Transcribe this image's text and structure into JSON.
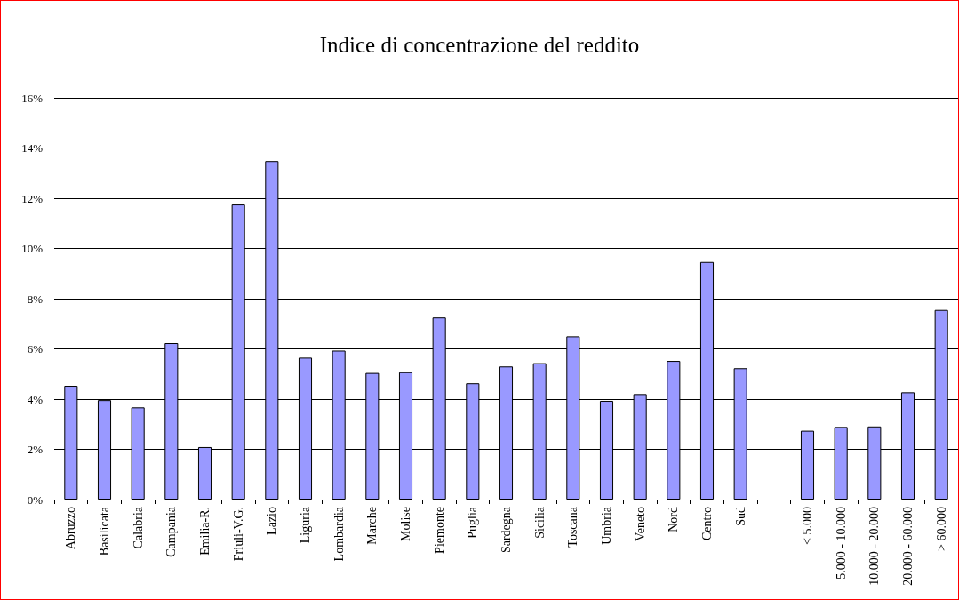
{
  "chart_data": {
    "type": "bar",
    "title": "Indice di concentrazione del reddito",
    "categories": [
      "Abruzzo",
      "Basilicata",
      "Calabria",
      "Campania",
      "Emilia-R.",
      "Friuli-V.G.",
      "Lazio",
      "Liguria",
      "Lombardia",
      "Marche",
      "Molise",
      "Piemonte",
      "Puglia",
      "Sardegna",
      "Sicilia",
      "Toscana",
      "Umbria",
      "Veneto",
      "Nord",
      "Centro",
      "Sud",
      null,
      "< 5.000",
      "5.000 - 10.000",
      "10.000 - 20.000",
      "20.000 - 60.000",
      "> 60.000"
    ],
    "values": [
      4.53,
      3.96,
      3.67,
      6.23,
      2.09,
      11.75,
      13.48,
      5.65,
      5.93,
      5.04,
      5.07,
      7.25,
      4.63,
      5.3,
      5.43,
      6.5,
      3.93,
      4.2,
      5.52,
      9.46,
      5.23,
      null,
      2.74,
      2.89,
      2.91,
      4.27,
      7.55
    ],
    "color": "#9999ff",
    "ylim": [
      0,
      16
    ],
    "yticks": [
      {
        "value": 0,
        "label": "0%"
      },
      {
        "value": 2,
        "label": "2%"
      },
      {
        "value": 4,
        "label": "4%"
      },
      {
        "value": 6,
        "label": "6%"
      },
      {
        "value": 8,
        "label": "8%"
      },
      {
        "value": 10,
        "label": "10%"
      },
      {
        "value": 12,
        "label": "12%"
      },
      {
        "value": 14,
        "label": "14%"
      },
      {
        "value": 16,
        "label": "16%"
      }
    ],
    "grid": "y"
  }
}
